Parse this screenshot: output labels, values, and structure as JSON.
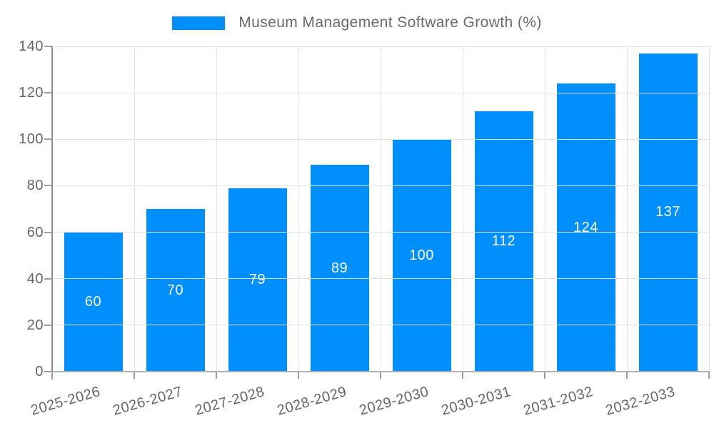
{
  "legend": {
    "label": "Museum Management Software Growth (%)"
  },
  "chart_data": {
    "type": "bar",
    "title": "Museum Management Software Growth (%)",
    "categories": [
      "2025-2026",
      "2026-2027",
      "2027-2028",
      "2028-2029",
      "2029-2030",
      "2030-2031",
      "2031-2032",
      "2032-2033"
    ],
    "values": [
      60,
      70,
      79,
      89,
      100,
      112,
      124,
      137
    ],
    "series": [
      {
        "name": "Museum Management Software Growth (%)",
        "values": [
          60,
          70,
          79,
          89,
          100,
          112,
          124,
          137
        ]
      }
    ],
    "xlabel": "",
    "ylabel": "",
    "ylim": [
      0,
      140
    ],
    "yticks": [
      0,
      20,
      40,
      60,
      80,
      100,
      120,
      140
    ],
    "grid": true,
    "legend_position": "top",
    "bar_labels_position": "middle",
    "colors": {
      "bar": "#008FFB",
      "bar_label": "#ffffff",
      "axis_text": "#666666",
      "legend_text": "#6b6b6b",
      "grid": "#e2e2e2",
      "y_axis_line": "#8f8f8f",
      "x_axis_line": "#b0b0b0",
      "tick": "#9e9e9e"
    }
  }
}
